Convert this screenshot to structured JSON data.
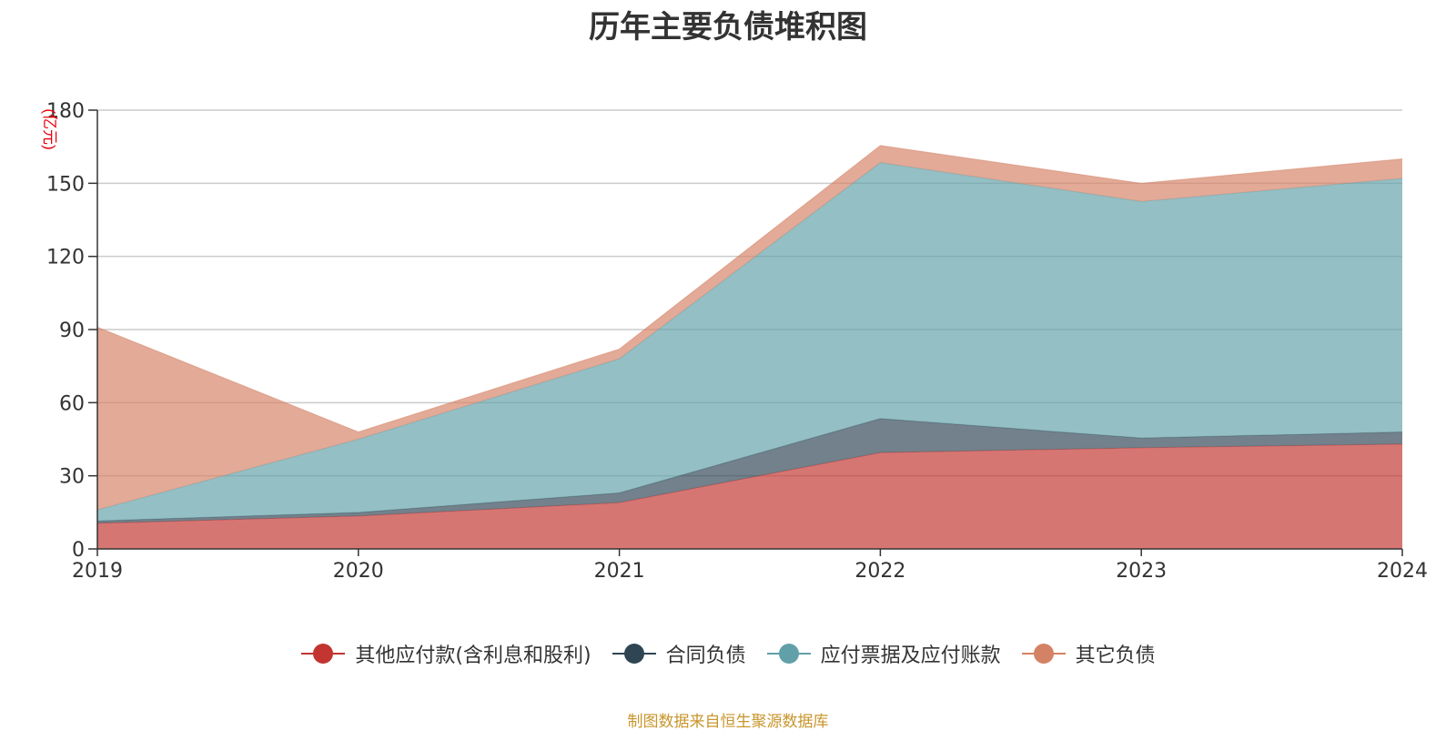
{
  "chart_data": {
    "type": "area",
    "stacked": true,
    "title": "历年主要负债堆积图",
    "ylabel": "(亿元)",
    "categories": [
      "2019",
      "2020",
      "2021",
      "2022",
      "2023",
      "2024"
    ],
    "ylim": [
      0,
      180
    ],
    "yticks": [
      0,
      30,
      60,
      90,
      120,
      150,
      180
    ],
    "grid": true,
    "legend_position": "bottom",
    "series": [
      {
        "name": "其他应付款(含利息和股利)",
        "color": "#c23531",
        "values": [
          10.5,
          13.5,
          19,
          39.5,
          41.5,
          43
        ]
      },
      {
        "name": "合同负债",
        "color": "#2f4554",
        "values": [
          1,
          1.5,
          4,
          14,
          4,
          5
        ]
      },
      {
        "name": "应付票据及应付账款",
        "color": "#61a0a8",
        "values": [
          4.5,
          30,
          55,
          105,
          97,
          104
        ]
      },
      {
        "name": "其它负债",
        "color": "#d48265",
        "values": [
          75,
          3,
          4,
          7,
          7.5,
          8
        ]
      }
    ]
  },
  "source_note": "制图数据来自恒生聚源数据库"
}
